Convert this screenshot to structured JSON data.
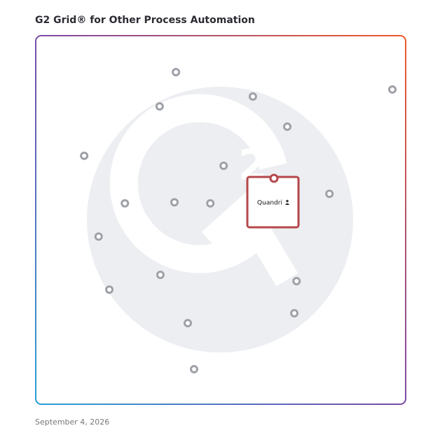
{
  "chart_data": {
    "type": "scatter",
    "title": "G2 Grid® for Other Process Automation",
    "footer": "September 4, 2026",
    "xlim": [
      0,
      100
    ],
    "ylim": [
      0,
      100
    ],
    "x": [
      37.9,
      33.5,
      58.7,
      96.4,
      68.0,
      13.1,
      50.8,
      79.4,
      24.1,
      37.5,
      47.2,
      17.0,
      33.7,
      19.9,
      70.5,
      69.9,
      41.1,
      42.8
    ],
    "y": [
      90.1,
      80.8,
      83.5,
      85.4,
      75.3,
      67.4,
      64.7,
      57.1,
      54.5,
      54.8,
      54.5,
      45.5,
      35.1,
      31.1,
      33.4,
      24.7,
      22.0,
      9.5
    ],
    "color": "#9ea1a8",
    "highlight": {
      "name": "Quandri",
      "x": 64.4,
      "y": 61.3,
      "color": "#b5474b"
    }
  }
}
